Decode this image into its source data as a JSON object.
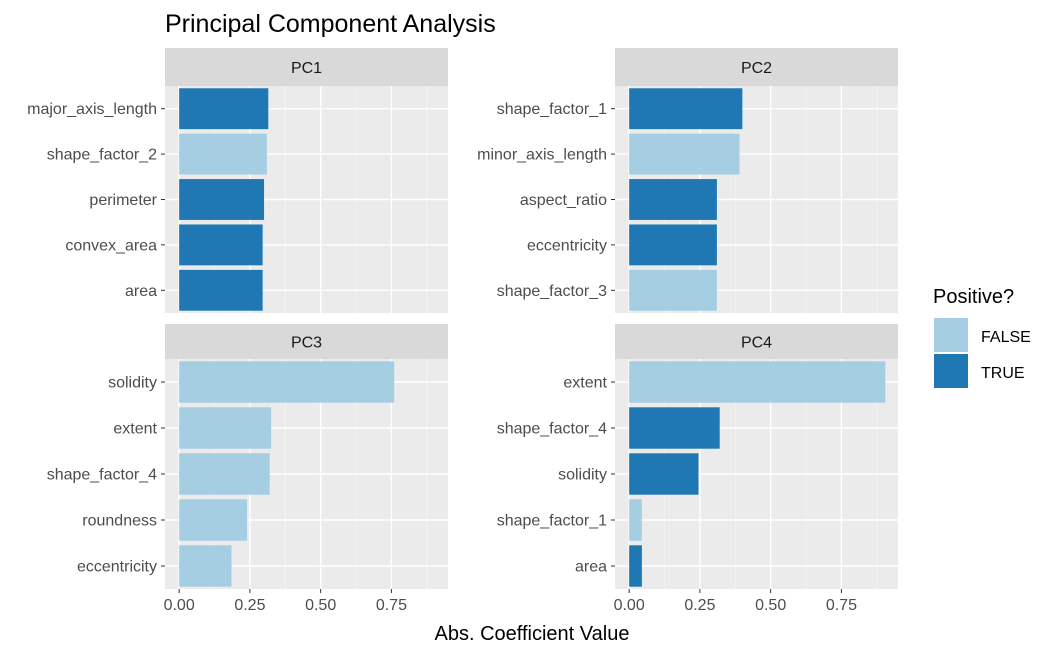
{
  "chart_data": {
    "type": "bar",
    "orientation": "horizontal",
    "title": "Principal Component Analysis",
    "xlabel": "Abs. Coefficient Value",
    "ylabel": "",
    "xlim": [
      -0.05,
      0.95
    ],
    "x_ticks": [
      "0.00",
      "0.25",
      "0.50",
      "0.75"
    ],
    "x_tick_values": [
      0,
      0.25,
      0.5,
      0.75
    ],
    "grid": true,
    "legend": {
      "title": "Positive?",
      "placement": "right",
      "entries": [
        {
          "label": "FALSE",
          "color": "#a6cee3"
        },
        {
          "label": "TRUE",
          "color": "#1f78b4"
        }
      ]
    },
    "facets": [
      {
        "name": "PC1",
        "categories": [
          "major_axis_length",
          "shape_factor_2",
          "perimeter",
          "convex_area",
          "area"
        ],
        "values": [
          0.315,
          0.31,
          0.3,
          0.295,
          0.295
        ],
        "positive": [
          true,
          false,
          true,
          true,
          true
        ]
      },
      {
        "name": "PC2",
        "categories": [
          "shape_factor_1",
          "minor_axis_length",
          "aspect_ratio",
          "eccentricity",
          "shape_factor_3"
        ],
        "values": [
          0.4,
          0.39,
          0.31,
          0.31,
          0.31
        ],
        "positive": [
          true,
          false,
          true,
          true,
          false
        ]
      },
      {
        "name": "PC3",
        "categories": [
          "solidity",
          "extent",
          "shape_factor_4",
          "roundness",
          "eccentricity"
        ],
        "values": [
          0.76,
          0.325,
          0.32,
          0.24,
          0.185
        ],
        "positive": [
          false,
          false,
          false,
          false,
          false
        ]
      },
      {
        "name": "PC4",
        "categories": [
          "extent",
          "shape_factor_4",
          "solidity",
          "shape_factor_1",
          "area"
        ],
        "values": [
          0.905,
          0.32,
          0.245,
          0.045,
          0.045
        ],
        "positive": [
          false,
          true,
          true,
          false,
          true
        ]
      }
    ]
  }
}
